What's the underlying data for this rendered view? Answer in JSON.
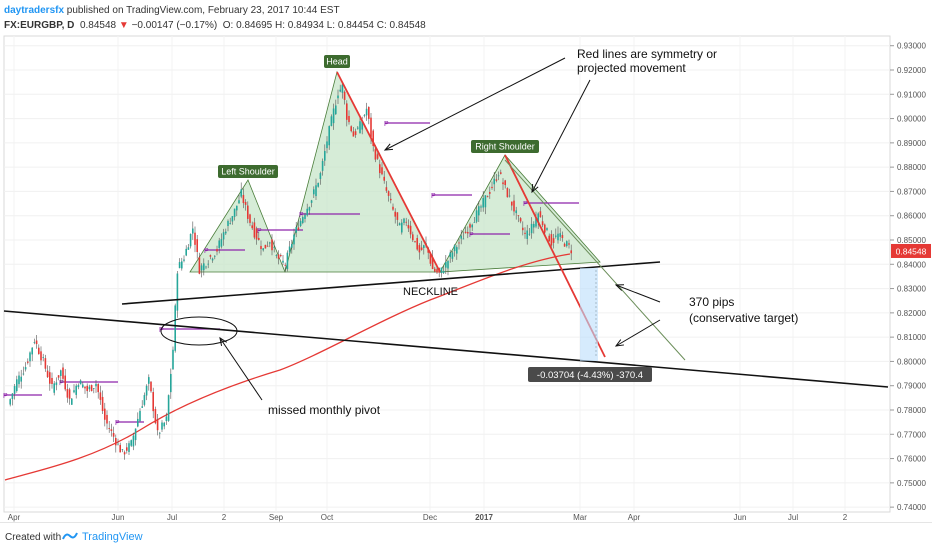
{
  "header": {
    "author": "daytradersfx",
    "published": " published on TradingView.com, February 23, 2017 10:44 EST",
    "symbol": "FX:EURGBP, D",
    "last": "0.84548",
    "change_arrow": "▼",
    "change": "−0.00147 (−0.17%)",
    "ohlc": "O: 0.84695  H: 0.84934  L: 0.84454  C: 0.84548"
  },
  "footer": {
    "created": "Created with",
    "brand": "TradingView"
  },
  "colors": {
    "candle_up": "#26a69a",
    "candle_down": "#e53935",
    "ma": "#e53935",
    "pattern_fill": "#c8e6c9",
    "pattern_stroke": "#4a7d3a",
    "pivot": "#8e24aa",
    "label_bg": "#3d6b2f",
    "price_badge": "#e53935"
  },
  "chart_data": {
    "type": "candlestick",
    "symbol": "EURGBP",
    "timeframe": "Daily",
    "y_axis": {
      "ticks": [
        "0.93000",
        "0.92000",
        "0.91000",
        "0.90000",
        "0.89000",
        "0.88000",
        "0.87000",
        "0.86000",
        "0.85000",
        "0.84000",
        "0.83000",
        "0.82000",
        "0.81000",
        "0.80000",
        "0.79000",
        "0.78000",
        "0.77000",
        "0.76000",
        "0.75000",
        "0.74000"
      ],
      "range": [
        0.738,
        0.934
      ],
      "current_price_label": "0.84548"
    },
    "x_axis": {
      "labels": [
        "Apr",
        "Jun",
        "Jul",
        "2",
        "Sep",
        "Oct",
        "Dec",
        "2017",
        "Mar",
        "Apr",
        "Jun",
        "Jul",
        "2"
      ]
    },
    "price_path": [
      [
        0,
        0.782
      ],
      [
        4,
        0.792
      ],
      [
        8,
        0.798
      ],
      [
        12,
        0.809
      ],
      [
        16,
        0.8
      ],
      [
        20,
        0.789
      ],
      [
        24,
        0.796
      ],
      [
        28,
        0.784
      ],
      [
        32,
        0.792
      ],
      [
        36,
        0.788
      ],
      [
        40,
        0.791
      ],
      [
        44,
        0.776
      ],
      [
        48,
        0.769
      ],
      [
        52,
        0.762
      ],
      [
        56,
        0.766
      ],
      [
        60,
        0.78
      ],
      [
        64,
        0.792
      ],
      [
        68,
        0.77
      ],
      [
        72,
        0.776
      ],
      [
        75,
        0.805
      ],
      [
        77,
        0.838
      ],
      [
        80,
        0.843
      ],
      [
        84,
        0.855
      ],
      [
        87,
        0.838
      ],
      [
        91,
        0.842
      ],
      [
        95,
        0.846
      ],
      [
        99,
        0.855
      ],
      [
        103,
        0.862
      ],
      [
        106,
        0.869
      ],
      [
        109,
        0.86
      ],
      [
        112,
        0.853
      ],
      [
        116,
        0.846
      ],
      [
        119,
        0.85
      ],
      [
        122,
        0.843
      ],
      [
        126,
        0.84
      ],
      [
        130,
        0.852
      ],
      [
        134,
        0.86
      ],
      [
        138,
        0.867
      ],
      [
        142,
        0.877
      ],
      [
        145,
        0.891
      ],
      [
        148,
        0.903
      ],
      [
        150,
        0.911
      ],
      [
        152,
        0.913
      ],
      [
        154,
        0.901
      ],
      [
        157,
        0.893
      ],
      [
        160,
        0.897
      ],
      [
        163,
        0.904
      ],
      [
        166,
        0.888
      ],
      [
        169,
        0.879
      ],
      [
        172,
        0.87
      ],
      [
        175,
        0.862
      ],
      [
        178,
        0.855
      ],
      [
        181,
        0.858
      ],
      [
        184,
        0.851
      ],
      [
        187,
        0.845
      ],
      [
        190,
        0.848
      ],
      [
        193,
        0.838
      ],
      [
        196,
        0.836
      ],
      [
        199,
        0.84
      ],
      [
        202,
        0.845
      ],
      [
        205,
        0.849
      ],
      [
        208,
        0.853
      ],
      [
        211,
        0.858
      ],
      [
        214,
        0.862
      ],
      [
        217,
        0.867
      ],
      [
        220,
        0.872
      ],
      [
        223,
        0.878
      ],
      [
        226,
        0.871
      ],
      [
        229,
        0.865
      ],
      [
        232,
        0.858
      ],
      [
        235,
        0.852
      ],
      [
        238,
        0.855
      ],
      [
        241,
        0.861
      ],
      [
        244,
        0.855
      ],
      [
        247,
        0.849
      ],
      [
        250,
        0.852
      ],
      [
        253,
        0.849
      ],
      [
        256,
        0.846
      ]
    ],
    "annotations": [
      "Left Shoulder",
      "Head",
      "Right Shoulder",
      "NECKLINE",
      "Red lines are symmetry or projected movement",
      "370 pips (conservative target)",
      "missed monthly pivot",
      "-0.03704 (-4.43%) -370.4"
    ],
    "overlays": [
      "200-day moving average (red)",
      "monthly pivot lines (purple)",
      "head and shoulders pattern (green fill)",
      "neckline",
      "long-term trendline"
    ]
  },
  "annotations": {
    "left_shoulder": "Left Shoulder",
    "head": "Head",
    "right_shoulder": "Right Shoulder",
    "neckline": "NECKLINE",
    "red_lines_1": "Red lines are symmetry or",
    "red_lines_2": "projected movement",
    "pips_1": "370 pips",
    "pips_2": "(conservative target)",
    "missed_pivot": "missed monthly pivot",
    "measure": "-0.03704 (-4.43%) -370.4"
  }
}
